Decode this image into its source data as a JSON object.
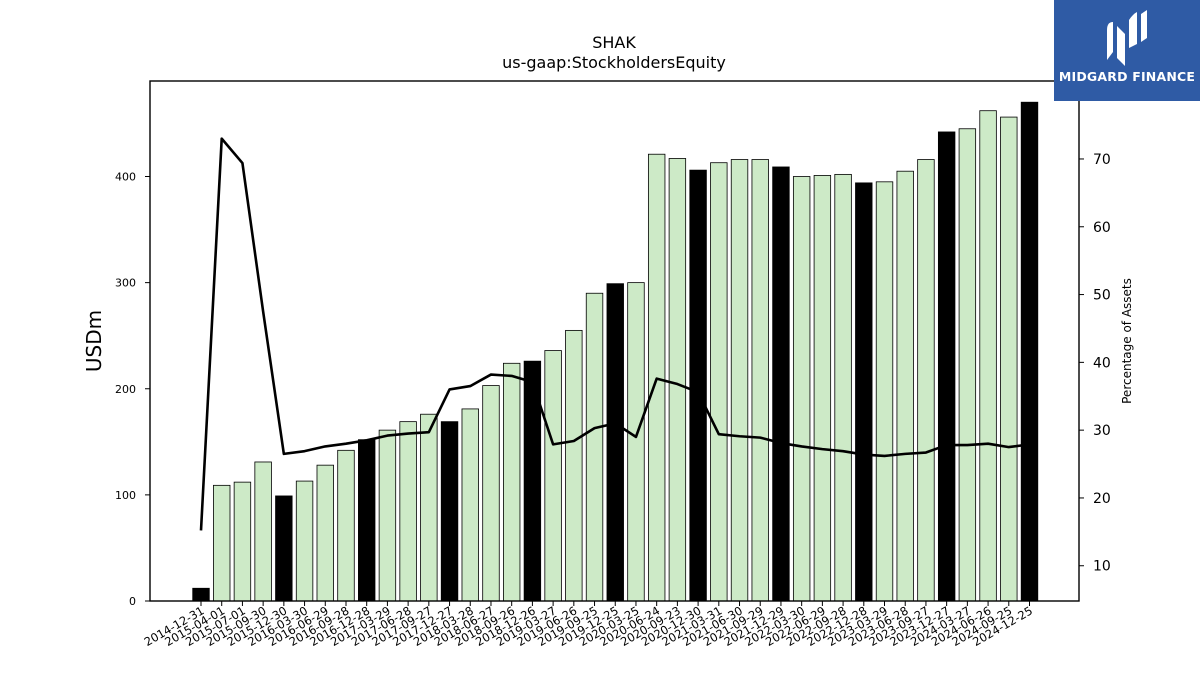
{
  "brand": {
    "name": "MIDGARD FINANCE",
    "bg_color": "#2f5ba5"
  },
  "chart_data": {
    "type": "bar",
    "title": "SHAK",
    "subtitle": "us-gaap:StockholdersEquity",
    "ylabel": "USDm",
    "y2label": "Percentage of Assets",
    "ylim": [
      0,
      490
    ],
    "y2lim": [
      4.8,
      81.5
    ],
    "yticks": [
      0,
      100,
      200,
      300,
      400
    ],
    "y2ticks": [
      10,
      20,
      30,
      40,
      50,
      60,
      70
    ],
    "bar_colors": {
      "q4": "#000000",
      "other": "#cdeac7"
    },
    "line_color": "#000000",
    "categories": [
      "2014-12-31",
      "2015-04-01",
      "2015-07-01",
      "2015-09-30",
      "2015-12-30",
      "2016-03-30",
      "2016-06-29",
      "2016-09-28",
      "2016-12-28",
      "2017-03-29",
      "2017-06-28",
      "2017-09-27",
      "2017-12-27",
      "2018-03-28",
      "2018-06-27",
      "2018-09-26",
      "2018-12-26",
      "2019-03-27",
      "2019-06-26",
      "2019-09-25",
      "2019-12-25",
      "2020-03-25",
      "2020-06-24",
      "2020-09-23",
      "2020-12-30",
      "2021-03-31",
      "2021-06-30",
      "2021-09-29",
      "2021-12-29",
      "2022-03-30",
      "2022-06-29",
      "2022-09-28",
      "2022-12-28",
      "2023-03-29",
      "2023-06-28",
      "2023-09-27",
      "2023-12-27",
      "2024-03-27",
      "2024-06-26",
      "2024-09-25",
      "2024-12-25"
    ],
    "series": [
      {
        "kind": "bar",
        "values": [
          12,
          109,
          112,
          131,
          99,
          113,
          128,
          142,
          152,
          161,
          169,
          176,
          169,
          181,
          203,
          224,
          226,
          236,
          255,
          290,
          299,
          300,
          421,
          417,
          406,
          413,
          416,
          416,
          409,
          400,
          401,
          402,
          394,
          395,
          405,
          416,
          442,
          445,
          462,
          456,
          470
        ],
        "q4": [
          true,
          false,
          false,
          false,
          true,
          false,
          false,
          false,
          true,
          false,
          false,
          false,
          true,
          false,
          false,
          false,
          true,
          false,
          false,
          false,
          true,
          false,
          false,
          false,
          true,
          false,
          false,
          false,
          true,
          false,
          false,
          false,
          true,
          false,
          false,
          false,
          true,
          false,
          false,
          false,
          true
        ]
      },
      {
        "kind": "line",
        "axis": "right",
        "values": [
          15.2,
          73.0,
          69.4,
          47.5,
          26.5,
          26.9,
          27.6,
          28.0,
          28.5,
          29.2,
          29.5,
          29.7,
          36.0,
          36.5,
          38.2,
          38.0,
          37.1,
          27.9,
          28.4,
          30.3,
          31.0,
          29.0,
          37.6,
          36.8,
          35.6,
          29.4,
          29.1,
          28.9,
          28.1,
          27.6,
          27.2,
          26.9,
          26.4,
          26.2,
          26.5,
          26.7,
          27.8,
          27.8,
          28.0,
          27.5,
          27.9
        ]
      }
    ]
  }
}
